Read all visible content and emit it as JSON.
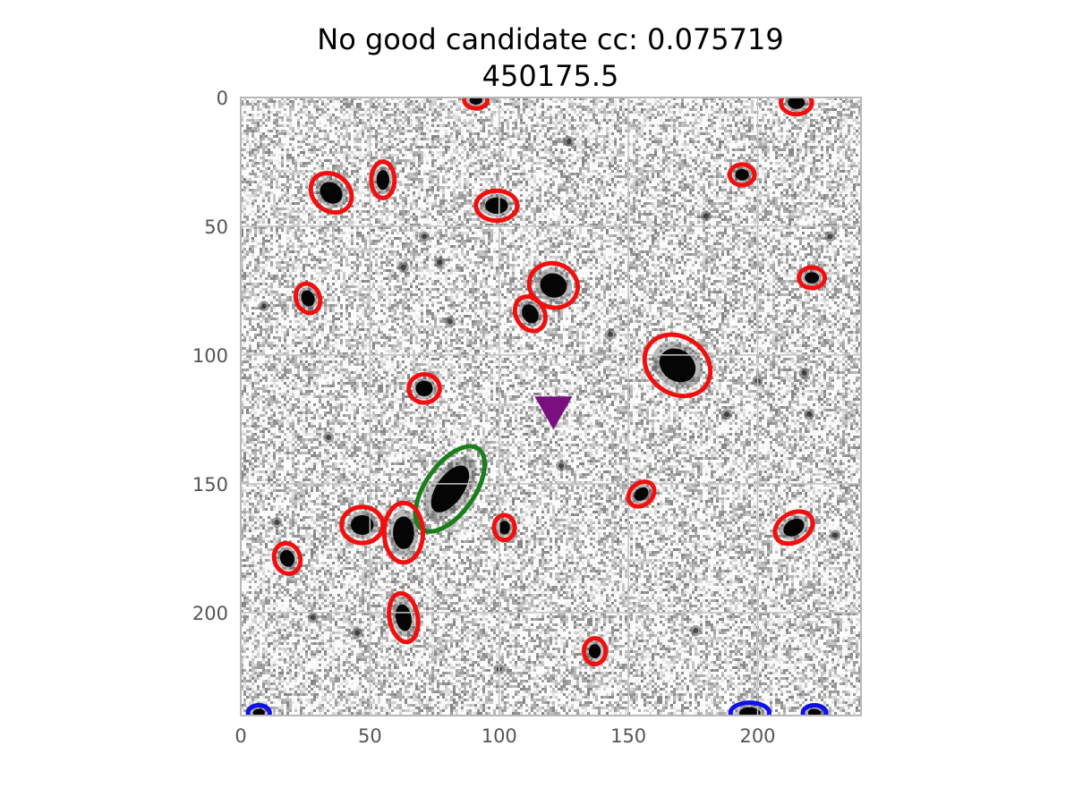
{
  "chart_data": {
    "type": "image",
    "title_lines": [
      "No good candidate cc: 0.075719",
      "450175.5"
    ],
    "xlim": [
      0,
      240
    ],
    "ylim": [
      240,
      0
    ],
    "x_ticks": [
      0,
      50,
      100,
      150,
      200
    ],
    "y_ticks": [
      0,
      50,
      100,
      150,
      200
    ],
    "grid": true,
    "colormap": "grayscale (inverted)",
    "target_marker": {
      "shape": "downward-triangle",
      "color": "#7a0f7d",
      "x": 121,
      "y": 122
    },
    "sources": [
      {
        "x": 91,
        "y": 1,
        "a": 4.5,
        "b": 3.2,
        "angle": 0,
        "color": "#f01010"
      },
      {
        "x": 215,
        "y": 2,
        "a": 6,
        "b": 4.5,
        "angle": 0,
        "color": "#f01010"
      },
      {
        "x": 35,
        "y": 37,
        "a": 8.5,
        "b": 7,
        "angle": 40,
        "color": "#f01010"
      },
      {
        "x": 55,
        "y": 32,
        "a": 7,
        "b": 4.5,
        "angle": 90,
        "color": "#f01010"
      },
      {
        "x": 99,
        "y": 42,
        "a": 8,
        "b": 5.8,
        "angle": 0,
        "color": "#f01010"
      },
      {
        "x": 194,
        "y": 30,
        "a": 4.8,
        "b": 4,
        "angle": 0,
        "color": "#f01010"
      },
      {
        "x": 26,
        "y": 78,
        "a": 5.8,
        "b": 4.6,
        "angle": 70,
        "color": "#f01010"
      },
      {
        "x": 121,
        "y": 73,
        "a": 9.5,
        "b": 8.5,
        "angle": 20,
        "color": "#f01010"
      },
      {
        "x": 112,
        "y": 84,
        "a": 7,
        "b": 5.5,
        "angle": 60,
        "color": "#f01010"
      },
      {
        "x": 221,
        "y": 70,
        "a": 5,
        "b": 4,
        "angle": 0,
        "color": "#f01010"
      },
      {
        "x": 169,
        "y": 104,
        "a": 13.5,
        "b": 11,
        "angle": 35,
        "color": "#f01010"
      },
      {
        "x": 71,
        "y": 113,
        "a": 6,
        "b": 5.5,
        "angle": 0,
        "color": "#f01010"
      },
      {
        "x": 81,
        "y": 152,
        "a": 19,
        "b": 9.5,
        "angle": -55,
        "color": "#1a7f1a"
      },
      {
        "x": 155,
        "y": 154,
        "a": 5.5,
        "b": 4.2,
        "angle": -40,
        "color": "#f01010"
      },
      {
        "x": 47,
        "y": 166,
        "a": 8,
        "b": 7,
        "angle": 0,
        "color": "#f01010"
      },
      {
        "x": 63,
        "y": 169,
        "a": 11.5,
        "b": 7.5,
        "angle": 90,
        "color": "#f01010"
      },
      {
        "x": 102,
        "y": 167,
        "a": 4.8,
        "b": 4,
        "angle": 90,
        "color": "#f01010"
      },
      {
        "x": 214,
        "y": 167,
        "a": 7.8,
        "b": 5.6,
        "angle": -30,
        "color": "#f01010"
      },
      {
        "x": 18,
        "y": 179,
        "a": 6,
        "b": 5,
        "angle": 70,
        "color": "#f01010"
      },
      {
        "x": 63,
        "y": 202,
        "a": 9.5,
        "b": 5.5,
        "angle": 80,
        "color": "#f01010"
      },
      {
        "x": 137,
        "y": 215,
        "a": 5,
        "b": 4.2,
        "angle": 90,
        "color": "#f01010"
      },
      {
        "x": 7,
        "y": 239,
        "a": 4.2,
        "b": 3,
        "angle": 0,
        "color": "#1010e8"
      },
      {
        "x": 197,
        "y": 239,
        "a": 7.5,
        "b": 4,
        "angle": 0,
        "color": "#1010e8"
      },
      {
        "x": 222,
        "y": 239,
        "a": 4.5,
        "b": 3,
        "angle": 0,
        "color": "#1010e8"
      }
    ],
    "diffuse_objects": [
      {
        "x": 71,
        "y": 54
      },
      {
        "x": 77,
        "y": 64
      },
      {
        "x": 63,
        "y": 66
      },
      {
        "x": 81,
        "y": 87
      },
      {
        "x": 180,
        "y": 46
      },
      {
        "x": 228,
        "y": 54
      },
      {
        "x": 127,
        "y": 17
      },
      {
        "x": 9,
        "y": 81
      },
      {
        "x": 143,
        "y": 92
      },
      {
        "x": 200,
        "y": 110
      },
      {
        "x": 218,
        "y": 107
      },
      {
        "x": 220,
        "y": 123
      },
      {
        "x": 34,
        "y": 132
      },
      {
        "x": 124,
        "y": 143
      },
      {
        "x": 14,
        "y": 165
      },
      {
        "x": 176,
        "y": 207
      },
      {
        "x": 28,
        "y": 202
      },
      {
        "x": 45,
        "y": 208
      },
      {
        "x": 100,
        "y": 222
      },
      {
        "x": 230,
        "y": 170
      },
      {
        "x": 188,
        "y": 123
      }
    ]
  }
}
